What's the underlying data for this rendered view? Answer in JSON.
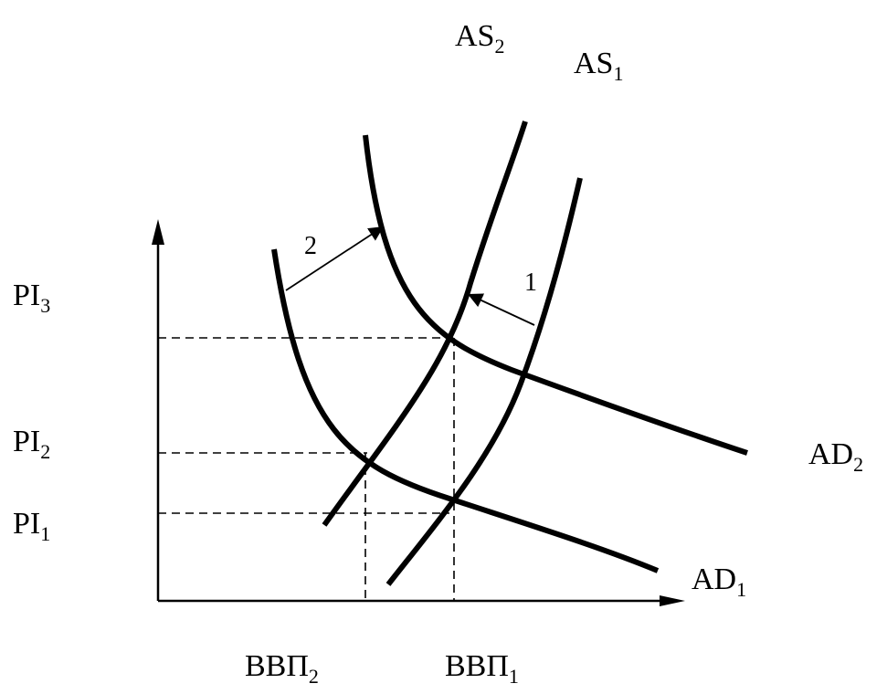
{
  "curves": {
    "as2": {
      "main": "AS",
      "sub": "2"
    },
    "as1": {
      "main": "AS",
      "sub": "1"
    },
    "ad2": {
      "main": "AD",
      "sub": "2"
    },
    "ad1": {
      "main": "AD",
      "sub": "1"
    }
  },
  "y_axis": {
    "pi3": {
      "main": "PI",
      "sub": "3"
    },
    "pi2": {
      "main": "PI",
      "sub": "2"
    },
    "pi1": {
      "main": "PI",
      "sub": "1"
    }
  },
  "x_axis": {
    "gdp2": {
      "main": "ВВП",
      "sub": "2"
    },
    "gdp1": {
      "main": "ВВП",
      "sub": "1"
    }
  },
  "shifts": {
    "shift_1": "1",
    "shift_2": "2"
  },
  "colors": {
    "ink": "#000000",
    "background": "#ffffff"
  }
}
